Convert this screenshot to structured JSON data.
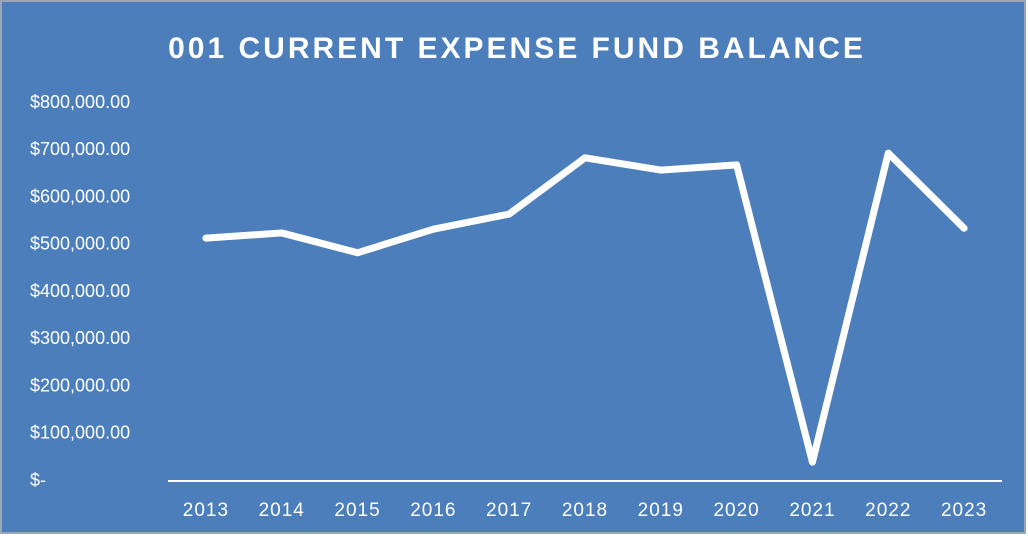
{
  "chart_data": {
    "type": "line",
    "title": "001 CURRENT EXPENSE FUND BALANCE",
    "categories": [
      "2013",
      "2014",
      "2015",
      "2016",
      "2017",
      "2018",
      "2019",
      "2020",
      "2021",
      "2022",
      "2023"
    ],
    "values": [
      514000,
      525000,
      483000,
      533000,
      565000,
      684000,
      658000,
      669000,
      40000,
      694000,
      535000
    ],
    "color": "#ffffff",
    "drop_lines": true,
    "ylim": [
      0,
      800000
    ],
    "yticks": [
      {
        "value": 0,
        "label": "$-"
      },
      {
        "value": 100000,
        "label": "$100,000.00"
      },
      {
        "value": 200000,
        "label": "$200,000.00"
      },
      {
        "value": 300000,
        "label": "$300,000.00"
      },
      {
        "value": 400000,
        "label": "$400,000.00"
      },
      {
        "value": 500000,
        "label": "$500,000.00"
      },
      {
        "value": 600000,
        "label": "$600,000.00"
      },
      {
        "value": 700000,
        "label": "$700,000.00"
      },
      {
        "value": 800000,
        "label": "$800,000.00"
      }
    ]
  }
}
